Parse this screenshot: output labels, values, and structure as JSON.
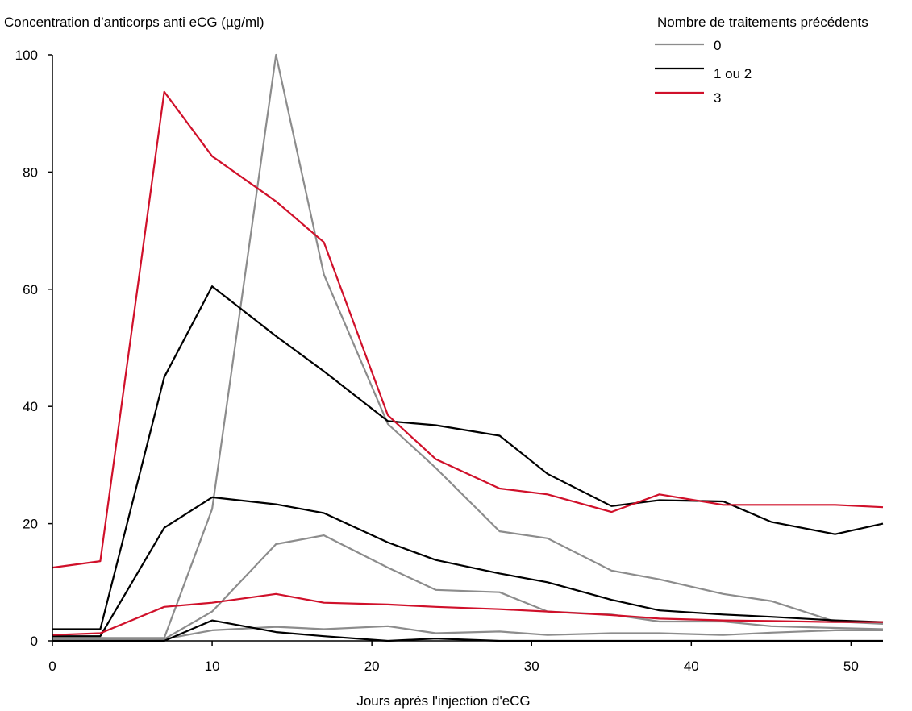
{
  "chart_data": {
    "type": "line",
    "ylabel": "Concentration d’anticorps anti eCG (µg/ml)",
    "xlabel": "Jours après l'injection d'eCG",
    "xlim": [
      0,
      52
    ],
    "ylim": [
      0,
      100
    ],
    "x_ticks": [
      0,
      10,
      20,
      30,
      40,
      50
    ],
    "y_ticks": [
      0,
      20,
      40,
      60,
      80,
      100
    ],
    "grid": false,
    "legend": {
      "title": "Nombre de traitements précédents",
      "position": "top-right",
      "entries": [
        {
          "label": "0",
          "color": "#8c8c8c"
        },
        {
          "label": "1 ou 2",
          "color": "#000000"
        },
        {
          "label": "3",
          "color": "#d0102a"
        }
      ]
    },
    "series": [
      {
        "group": "0",
        "color": "#8c8c8c",
        "x": [
          0,
          3,
          7,
          10,
          14,
          17,
          21,
          24,
          28,
          31,
          35,
          38,
          42,
          45,
          49,
          52
        ],
        "y": [
          0.5,
          0.5,
          0.5,
          22.5,
          100,
          62.5,
          37,
          29.5,
          18.7,
          17.5,
          12,
          10.5,
          8,
          6.8,
          3.3,
          2.9
        ]
      },
      {
        "group": "0",
        "color": "#8c8c8c",
        "x": [
          0,
          3,
          7,
          10,
          14,
          17,
          21,
          24,
          28,
          31,
          35,
          38,
          42,
          45,
          49,
          52
        ],
        "y": [
          0.3,
          0.3,
          0.3,
          5,
          16.5,
          18,
          12.5,
          8.7,
          8.3,
          5,
          4.5,
          3.3,
          3.3,
          2.5,
          2.2,
          2
        ]
      },
      {
        "group": "0",
        "color": "#8c8c8c",
        "x": [
          0,
          3,
          7,
          10,
          14,
          17,
          21,
          24,
          28,
          31,
          35,
          38,
          42,
          45,
          49,
          52
        ],
        "y": [
          0.5,
          0.5,
          0.3,
          1.8,
          2.4,
          2,
          2.5,
          1.3,
          1.6,
          1,
          1.3,
          1.3,
          1,
          1.4,
          1.8,
          1.8
        ]
      },
      {
        "group": "1 ou 2",
        "color": "#000000",
        "x": [
          0,
          3,
          7,
          10,
          14,
          17,
          21,
          24,
          28,
          31,
          35,
          38,
          42,
          45,
          49,
          52
        ],
        "y": [
          2,
          2,
          45,
          60.5,
          52,
          46,
          37.5,
          36.8,
          35,
          28.5,
          23,
          24,
          23.8,
          20.3,
          18.2,
          20
        ]
      },
      {
        "group": "1 ou 2",
        "color": "#000000",
        "x": [
          0,
          3,
          7,
          10,
          14,
          17,
          21,
          24,
          28,
          31,
          35,
          38,
          42,
          45,
          49,
          52
        ],
        "y": [
          0.8,
          0.8,
          19.3,
          24.5,
          23.3,
          21.8,
          16.8,
          13.8,
          11.5,
          10,
          7,
          5.2,
          4.5,
          4.1,
          3.5,
          3.2
        ]
      },
      {
        "group": "1 ou 2",
        "color": "#000000",
        "x": [
          0,
          3,
          7,
          10,
          14,
          17,
          21,
          24,
          28,
          31,
          35,
          38,
          42,
          45,
          49,
          52
        ],
        "y": [
          0,
          0,
          0,
          3.5,
          1.5,
          0.8,
          0,
          0.4,
          0,
          0,
          0,
          0,
          0,
          0,
          0,
          0
        ]
      },
      {
        "group": "3",
        "color": "#d0102a",
        "x": [
          0,
          3,
          7,
          10,
          14,
          17,
          21,
          24,
          28,
          31,
          35,
          38,
          42,
          45,
          49,
          52
        ],
        "y": [
          12.5,
          13.6,
          93.7,
          82.7,
          75,
          68,
          38.5,
          31,
          26,
          25,
          22,
          25,
          23.2,
          23.2,
          23.2,
          22.8
        ]
      },
      {
        "group": "3",
        "color": "#d0102a",
        "x": [
          0,
          3,
          7,
          10,
          14,
          17,
          21,
          24,
          28,
          31,
          35,
          38,
          42,
          45,
          49,
          52
        ],
        "y": [
          1,
          1.3,
          5.8,
          6.5,
          8,
          6.5,
          6.2,
          5.8,
          5.4,
          5,
          4.4,
          3.8,
          3.5,
          3.4,
          3.2,
          3.2
        ]
      }
    ]
  }
}
